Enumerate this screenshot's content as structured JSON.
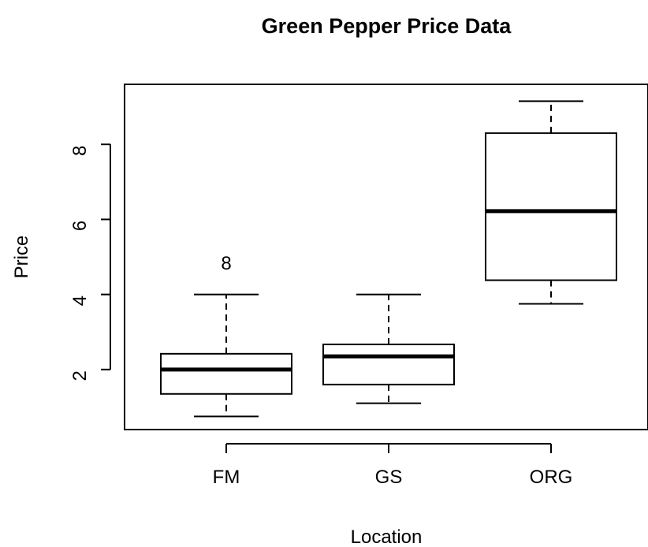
{
  "chart_data": {
    "type": "boxplot",
    "title": "Green Pepper Price Data",
    "xlabel": "Location",
    "ylabel": "Price",
    "ylim": [
      0.4,
      9.6
    ],
    "y_ticks": [
      2,
      4,
      6,
      8
    ],
    "y_tick_labels": [
      "2",
      "4",
      "6",
      "8"
    ],
    "categories": [
      "FM",
      "GS",
      "ORG"
    ],
    "boxes": [
      {
        "category": "FM",
        "whisker_low": 0.75,
        "q1": 1.35,
        "median": 2.0,
        "q3": 2.42,
        "whisker_high": 4.0,
        "outliers": [
          4.85
        ]
      },
      {
        "category": "GS",
        "whisker_low": 1.1,
        "q1": 1.6,
        "median": 2.35,
        "q3": 2.67,
        "whisker_high": 4.0,
        "outliers": []
      },
      {
        "category": "ORG",
        "whisker_low": 3.75,
        "q1": 4.38,
        "median": 6.22,
        "q3": 8.3,
        "whisker_high": 9.15,
        "outliers": []
      }
    ],
    "outlier_marker": "8",
    "grid": false
  }
}
